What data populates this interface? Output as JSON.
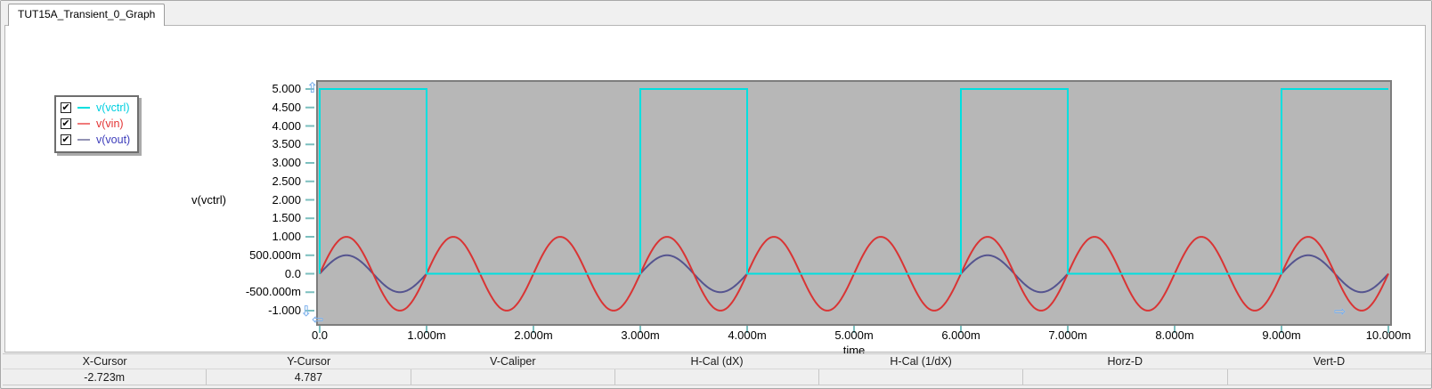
{
  "tab": {
    "title": "TUT15A_Transient_0_Graph"
  },
  "legend": {
    "items": [
      {
        "label": "v(vctrl)",
        "checked": true,
        "check_glyph": "✔",
        "dash_color": "#00dfdf",
        "text_color": "#00cfe0"
      },
      {
        "label": "v(vin)",
        "checked": true,
        "check_glyph": "✔",
        "dash_color": "#f07a7a",
        "text_color": "#e33434"
      },
      {
        "label": "v(vout)",
        "checked": true,
        "check_glyph": "✔",
        "dash_color": "#9393b5",
        "text_color": "#3d3dbb"
      }
    ]
  },
  "chart_data": {
    "type": "line",
    "x_axis": {
      "title": "time",
      "unit": "ms",
      "range_ms": [
        0,
        10
      ],
      "ticks": [
        {
          "label": "0.0",
          "t": 0
        },
        {
          "label": "1.000m",
          "t": 1
        },
        {
          "label": "2.000m",
          "t": 2
        },
        {
          "label": "3.000m",
          "t": 3
        },
        {
          "label": "4.000m",
          "t": 4
        },
        {
          "label": "5.000m",
          "t": 5
        },
        {
          "label": "6.000m",
          "t": 6
        },
        {
          "label": "7.000m",
          "t": 7
        },
        {
          "label": "8.000m",
          "t": 8
        },
        {
          "label": "9.000m",
          "t": 9
        },
        {
          "label": "10.000m",
          "t": 10
        }
      ]
    },
    "y_axis": {
      "title": "v(vctrl)",
      "range": [
        -1,
        5
      ],
      "ticks": [
        {
          "label": "5.000",
          "v": 5.0
        },
        {
          "label": "4.500",
          "v": 4.5
        },
        {
          "label": "4.000",
          "v": 4.0
        },
        {
          "label": "3.500",
          "v": 3.5
        },
        {
          "label": "3.000",
          "v": 3.0
        },
        {
          "label": "2.500",
          "v": 2.5
        },
        {
          "label": "2.000",
          "v": 2.0
        },
        {
          "label": "1.500",
          "v": 1.5
        },
        {
          "label": "1.000",
          "v": 1.0
        },
        {
          "label": "500.000m",
          "v": 0.5
        },
        {
          "label": "0.0",
          "v": 0.0
        },
        {
          "label": "-500.000m",
          "v": -0.5
        },
        {
          "label": "-1.000",
          "v": -1.0
        }
      ]
    },
    "series": [
      {
        "name": "v(vctrl)",
        "type": "square",
        "high": 5,
        "low": 0,
        "high_windows_ms": [
          [
            0,
            1
          ],
          [
            3,
            4
          ],
          [
            6,
            7
          ],
          [
            9,
            10
          ]
        ],
        "color": "#00dfdf"
      },
      {
        "name": "v(vin)",
        "type": "sine",
        "amplitude": 1,
        "period_ms": 1,
        "phase_deg": 0,
        "color": "#d93434"
      },
      {
        "name": "v(vout)",
        "type": "gated-sine",
        "amplitude": 0.5,
        "period_ms": 1,
        "phase_deg": 0,
        "gate_windows_ms": [
          [
            0,
            1
          ],
          [
            3,
            4
          ],
          [
            6,
            7
          ],
          [
            9,
            10
          ]
        ],
        "off_level": 0,
        "color": "#55548f",
        "off_overlap_color": "#1f7dc2"
      }
    ],
    "plot_style": {
      "background": "#b7b7b7",
      "border": "#7d7d7d",
      "tick_color": "#7bbfbf",
      "grid": false
    },
    "legend_position": "top-left"
  },
  "scroll_arrows": {
    "up": "⇧",
    "down": "⇩",
    "left": "⇦",
    "right": "⇨"
  },
  "status_bar": {
    "columns": [
      {
        "label": "X-Cursor",
        "value": "-2.723m"
      },
      {
        "label": "Y-Cursor",
        "value": "4.787"
      },
      {
        "label": "V-Caliper",
        "value": ""
      },
      {
        "label": "H-Cal (dX)",
        "value": ""
      },
      {
        "label": "H-Cal (1/dX)",
        "value": ""
      },
      {
        "label": "Horz-D",
        "value": ""
      },
      {
        "label": "Vert-D",
        "value": ""
      }
    ]
  }
}
